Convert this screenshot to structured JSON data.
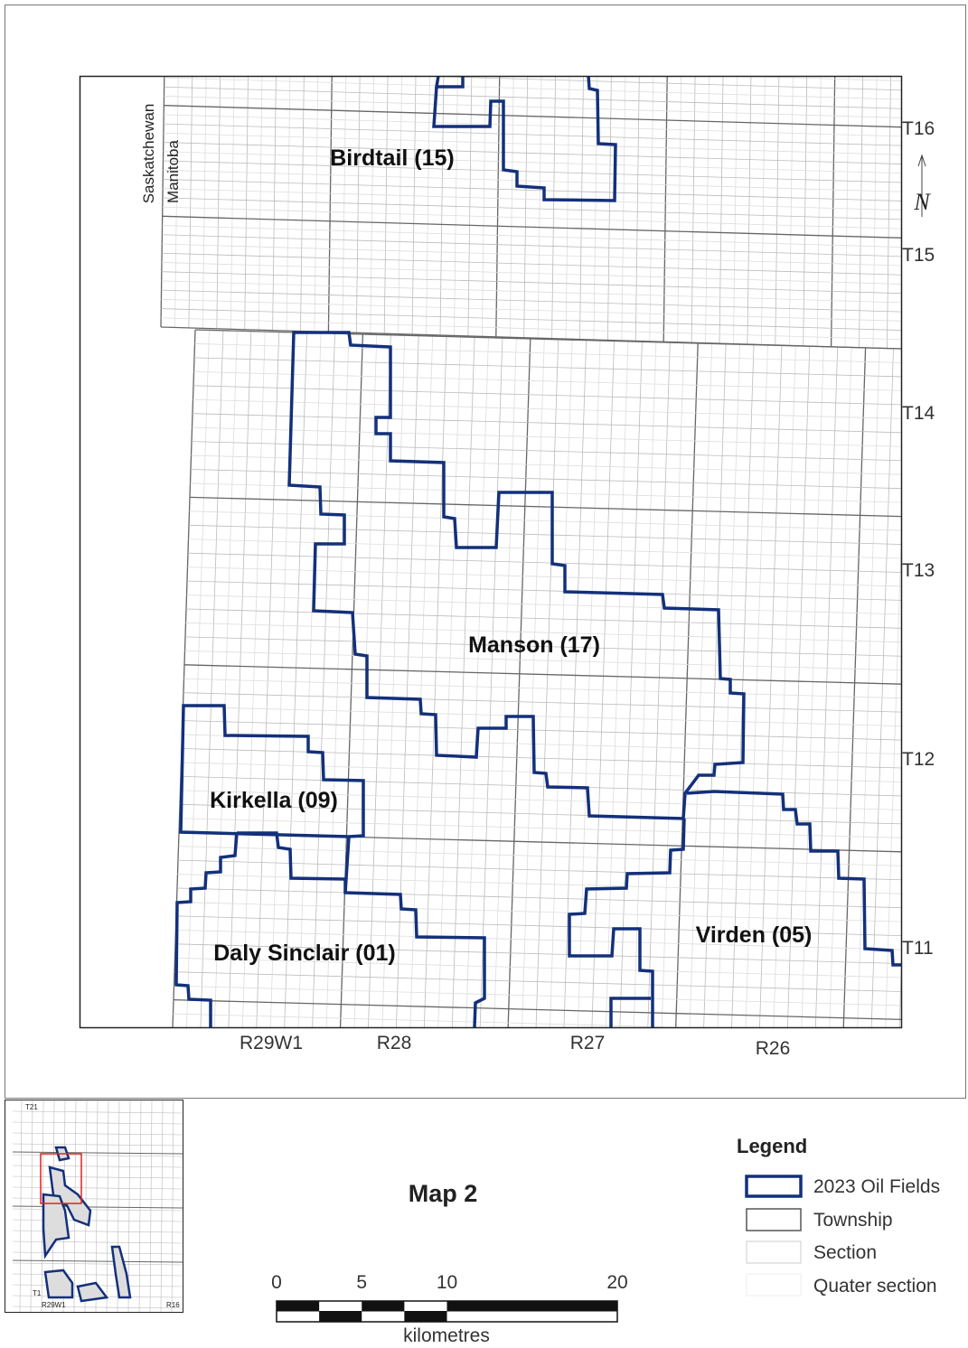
{
  "map": {
    "province_labels": [
      "Saskatchewan",
      "Manitoba"
    ],
    "township_labels": [
      "T16",
      "T15",
      "T14",
      "T13",
      "T12",
      "T11"
    ],
    "range_labels": [
      "R29W1",
      "R28",
      "R27",
      "R26"
    ],
    "field_labels": [
      "Birdtail (15)",
      "Manson (17)",
      "Kirkella (09)",
      "Daly Sinclair (01)",
      "Virden (05)"
    ],
    "north_arrow": "N"
  },
  "inset": {
    "township_labels": [
      "T21",
      "T1"
    ],
    "range_labels": [
      "R29W1",
      "R16"
    ]
  },
  "title": "Map 2",
  "legend": {
    "title": "Legend",
    "items": [
      "2023 Oil Fields",
      "Township",
      "Section",
      "Quater section"
    ]
  },
  "scale_bar": {
    "ticks": [
      0,
      5,
      10,
      20
    ],
    "unit": "kilometres"
  }
}
